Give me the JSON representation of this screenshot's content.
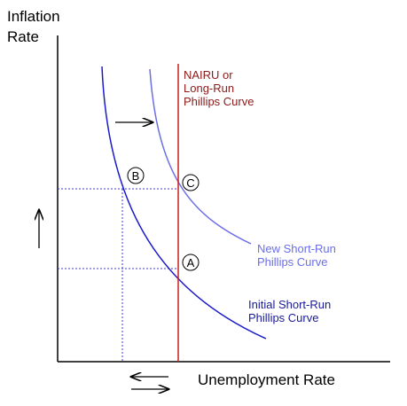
{
  "axes": {
    "y_label_line1": "Inflation",
    "y_label_line2": "Rate",
    "x_label": "Unemployment Rate"
  },
  "curves": {
    "nairu_line1": "NAIRU or",
    "nairu_line2": "Long-Run",
    "nairu_line3": "Phillips Curve",
    "new_sr_line1": "New Short-Run",
    "new_sr_line2": "Phillips Curve",
    "initial_sr_line1": "Initial Short-Run",
    "initial_sr_line2": "Phillips Curve"
  },
  "points": {
    "a": "A",
    "b": "B",
    "c": "C"
  },
  "colors": {
    "nairu": "#cc1f1f",
    "new_sr": "#6a6ee8",
    "initial_sr": "#1a1acc",
    "dotted": "#3a3aee"
  }
}
